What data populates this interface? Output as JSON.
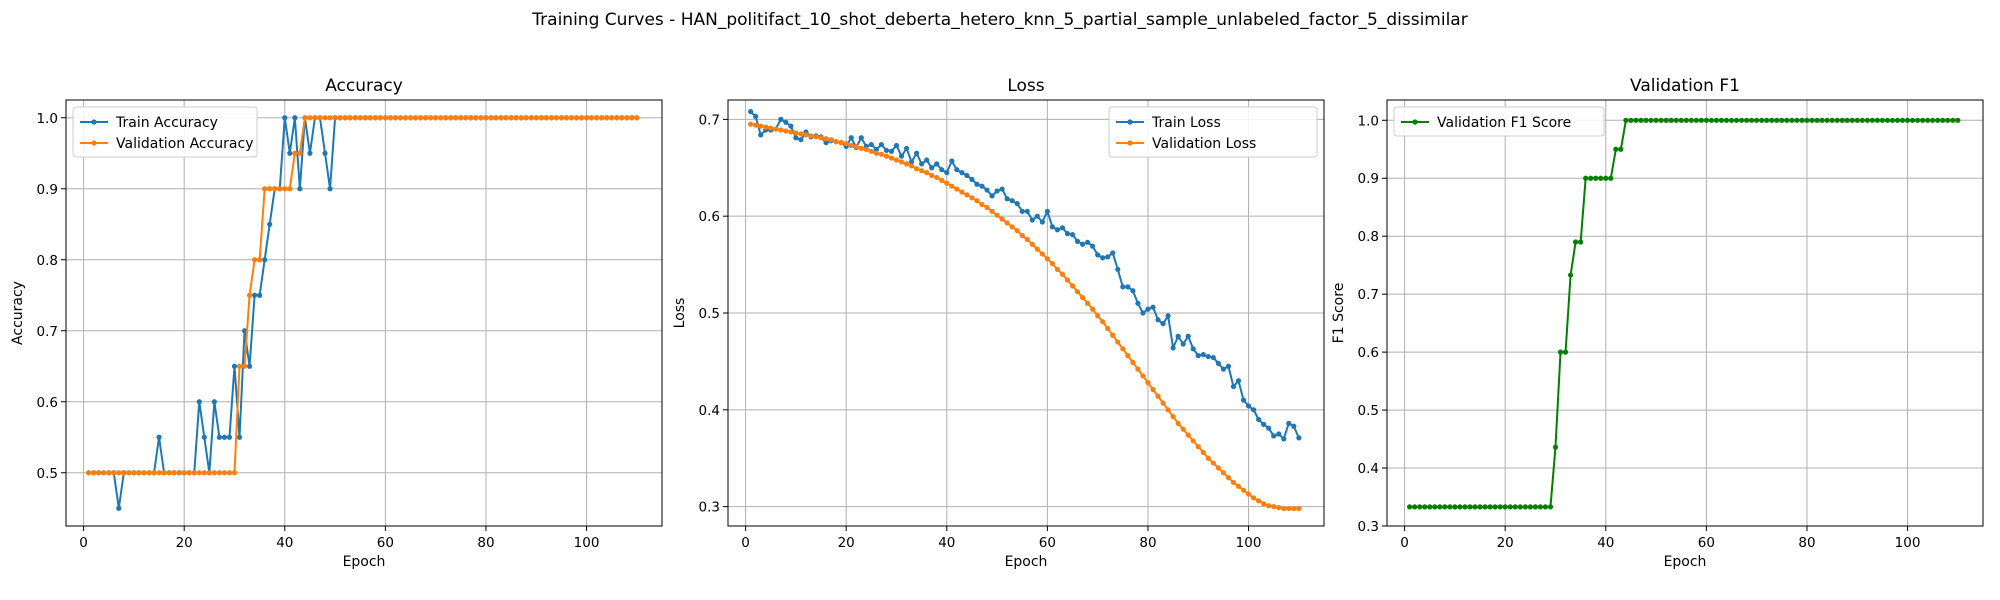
{
  "suptitle": "Training Curves - HAN_politifact_10_shot_deberta_hetero_knn_5_partial_sample_unlabeled_factor_5_dissimilar",
  "colors": {
    "blue": "#1f77b4",
    "orange": "#ff7f0e",
    "green": "#008000",
    "grid": "#b0b0b0"
  },
  "chart_data": [
    {
      "type": "line",
      "title": "Accuracy",
      "xlabel": "Epoch",
      "ylabel": "Accuracy",
      "xlim": [
        -3.5,
        115
      ],
      "ylim": [
        0.425,
        1.025
      ],
      "xticks": [
        0,
        20,
        40,
        60,
        80,
        100
      ],
      "yticks": [
        0.5,
        0.6,
        0.7,
        0.8,
        0.9,
        1.0
      ],
      "ytick_labels": [
        "0.5",
        "0.6",
        "0.7",
        "0.8",
        "0.9",
        "1.0"
      ],
      "grid": true,
      "legend": "upper-left",
      "series": [
        {
          "name": "Train Accuracy",
          "color": "#1f77b4",
          "x_start": 1,
          "values": [
            0.5,
            0.5,
            0.5,
            0.5,
            0.5,
            0.5,
            0.45,
            0.5,
            0.5,
            0.5,
            0.5,
            0.5,
            0.5,
            0.5,
            0.55,
            0.5,
            0.5,
            0.5,
            0.5,
            0.5,
            0.5,
            0.5,
            0.6,
            0.55,
            0.5,
            0.6,
            0.55,
            0.55,
            0.55,
            0.65,
            0.55,
            0.7,
            0.65,
            0.75,
            0.75,
            0.8,
            0.85,
            0.9,
            0.9,
            1.0,
            0.95,
            1.0,
            0.9,
            1.0,
            0.95,
            1.0,
            1.0,
            0.95,
            0.9,
            1.0,
            1.0,
            1.0,
            1.0,
            1.0,
            1.0,
            1.0,
            1.0,
            1.0,
            1.0,
            1.0,
            1.0,
            1.0,
            1.0,
            1.0,
            1.0,
            1.0,
            1.0,
            1.0,
            1.0,
            1.0,
            1.0,
            1.0,
            1.0,
            1.0,
            1.0,
            1.0,
            1.0,
            1.0,
            1.0,
            1.0,
            1.0,
            1.0,
            1.0,
            1.0,
            1.0,
            1.0,
            1.0,
            1.0,
            1.0,
            1.0,
            1.0,
            1.0,
            1.0,
            1.0,
            1.0,
            1.0,
            1.0,
            1.0,
            1.0,
            1.0,
            1.0,
            1.0,
            1.0,
            1.0,
            1.0,
            1.0,
            1.0,
            1.0,
            1.0,
            1.0
          ]
        },
        {
          "name": "Validation Accuracy",
          "color": "#ff7f0e",
          "x_start": 1,
          "values": [
            0.5,
            0.5,
            0.5,
            0.5,
            0.5,
            0.5,
            0.5,
            0.5,
            0.5,
            0.5,
            0.5,
            0.5,
            0.5,
            0.5,
            0.5,
            0.5,
            0.5,
            0.5,
            0.5,
            0.5,
            0.5,
            0.5,
            0.5,
            0.5,
            0.5,
            0.5,
            0.5,
            0.5,
            0.5,
            0.5,
            0.65,
            0.65,
            0.75,
            0.8,
            0.8,
            0.9,
            0.9,
            0.9,
            0.9,
            0.9,
            0.9,
            0.95,
            0.95,
            1.0,
            1.0,
            1.0,
            1.0,
            1.0,
            1.0,
            1.0,
            1.0,
            1.0,
            1.0,
            1.0,
            1.0,
            1.0,
            1.0,
            1.0,
            1.0,
            1.0,
            1.0,
            1.0,
            1.0,
            1.0,
            1.0,
            1.0,
            1.0,
            1.0,
            1.0,
            1.0,
            1.0,
            1.0,
            1.0,
            1.0,
            1.0,
            1.0,
            1.0,
            1.0,
            1.0,
            1.0,
            1.0,
            1.0,
            1.0,
            1.0,
            1.0,
            1.0,
            1.0,
            1.0,
            1.0,
            1.0,
            1.0,
            1.0,
            1.0,
            1.0,
            1.0,
            1.0,
            1.0,
            1.0,
            1.0,
            1.0,
            1.0,
            1.0,
            1.0,
            1.0,
            1.0,
            1.0,
            1.0,
            1.0,
            1.0,
            1.0
          ]
        }
      ]
    },
    {
      "type": "line",
      "title": "Loss",
      "xlabel": "Epoch",
      "ylabel": "Loss",
      "xlim": [
        -3.5,
        115
      ],
      "ylim": [
        0.28,
        0.72
      ],
      "xticks": [
        0,
        20,
        40,
        60,
        80,
        100
      ],
      "yticks": [
        0.3,
        0.4,
        0.5,
        0.6,
        0.7
      ],
      "ytick_labels": [
        "0.3",
        "0.4",
        "0.5",
        "0.6",
        "0.7"
      ],
      "grid": true,
      "legend": "upper-right",
      "series": [
        {
          "name": "Train Loss",
          "color": "#1f77b4",
          "x_start": 1,
          "values": [
            0.708,
            0.703,
            0.684,
            0.689,
            0.689,
            0.69,
            0.7,
            0.697,
            0.693,
            0.681,
            0.679,
            0.687,
            0.682,
            0.683,
            0.682,
            0.676,
            0.678,
            0.677,
            0.676,
            0.672,
            0.681,
            0.671,
            0.681,
            0.672,
            0.674,
            0.669,
            0.674,
            0.668,
            0.667,
            0.673,
            0.662,
            0.67,
            0.656,
            0.665,
            0.654,
            0.658,
            0.65,
            0.654,
            0.648,
            0.645,
            0.657,
            0.648,
            0.645,
            0.642,
            0.638,
            0.633,
            0.631,
            0.627,
            0.621,
            0.626,
            0.628,
            0.618,
            0.616,
            0.613,
            0.605,
            0.605,
            0.596,
            0.6,
            0.594,
            0.605,
            0.589,
            0.586,
            0.588,
            0.582,
            0.581,
            0.574,
            0.571,
            0.573,
            0.569,
            0.56,
            0.557,
            0.558,
            0.562,
            0.545,
            0.527,
            0.527,
            0.523,
            0.51,
            0.5,
            0.504,
            0.506,
            0.493,
            0.489,
            0.497,
            0.464,
            0.476,
            0.468,
            0.476,
            0.463,
            0.456,
            0.457,
            0.455,
            0.454,
            0.448,
            0.442,
            0.445,
            0.424,
            0.43,
            0.41,
            0.404,
            0.4,
            0.39,
            0.385,
            0.381,
            0.373,
            0.375,
            0.37,
            0.386,
            0.383,
            0.371
          ]
        },
        {
          "name": "Validation Loss",
          "color": "#ff7f0e",
          "x_start": 1,
          "values": [
            0.695,
            0.694,
            0.693,
            0.692,
            0.691,
            0.69,
            0.689,
            0.688,
            0.687,
            0.686,
            0.685,
            0.684,
            0.683,
            0.682,
            0.681,
            0.68,
            0.679,
            0.677,
            0.676,
            0.675,
            0.673,
            0.672,
            0.67,
            0.669,
            0.667,
            0.665,
            0.664,
            0.662,
            0.66,
            0.658,
            0.656,
            0.654,
            0.652,
            0.649,
            0.647,
            0.645,
            0.642,
            0.64,
            0.637,
            0.634,
            0.631,
            0.628,
            0.625,
            0.622,
            0.619,
            0.616,
            0.612,
            0.609,
            0.605,
            0.601,
            0.597,
            0.593,
            0.589,
            0.585,
            0.58,
            0.576,
            0.571,
            0.566,
            0.561,
            0.556,
            0.551,
            0.545,
            0.54,
            0.534,
            0.528,
            0.522,
            0.516,
            0.51,
            0.504,
            0.497,
            0.491,
            0.484,
            0.477,
            0.47,
            0.463,
            0.456,
            0.449,
            0.442,
            0.435,
            0.428,
            0.421,
            0.414,
            0.407,
            0.4,
            0.393,
            0.386,
            0.38,
            0.374,
            0.368,
            0.362,
            0.356,
            0.35,
            0.345,
            0.34,
            0.335,
            0.33,
            0.325,
            0.321,
            0.317,
            0.313,
            0.309,
            0.306,
            0.303,
            0.301,
            0.3,
            0.299,
            0.298,
            0.298,
            0.298,
            0.298
          ]
        }
      ]
    },
    {
      "type": "line",
      "title": "Validation F1",
      "xlabel": "Epoch",
      "ylabel": "F1 Score",
      "xlim": [
        -3.5,
        115
      ],
      "ylim": [
        0.3,
        1.035
      ],
      "xticks": [
        0,
        20,
        40,
        60,
        80,
        100
      ],
      "yticks": [
        0.3,
        0.4,
        0.5,
        0.6,
        0.7,
        0.8,
        0.9,
        1.0
      ],
      "ytick_labels": [
        "0.3",
        "0.4",
        "0.5",
        "0.6",
        "0.7",
        "0.8",
        "0.9",
        "1.0"
      ],
      "grid": true,
      "legend": "upper-left",
      "series": [
        {
          "name": "Validation F1 Score",
          "color": "#008000",
          "x_start": 1,
          "values": [
            0.333,
            0.333,
            0.333,
            0.333,
            0.333,
            0.333,
            0.333,
            0.333,
            0.333,
            0.333,
            0.333,
            0.333,
            0.333,
            0.333,
            0.333,
            0.333,
            0.333,
            0.333,
            0.333,
            0.333,
            0.333,
            0.333,
            0.333,
            0.333,
            0.333,
            0.333,
            0.333,
            0.333,
            0.333,
            0.436,
            0.6,
            0.6,
            0.733,
            0.79,
            0.79,
            0.9,
            0.9,
            0.9,
            0.9,
            0.9,
            0.9,
            0.95,
            0.95,
            1.0,
            1.0,
            1.0,
            1.0,
            1.0,
            1.0,
            1.0,
            1.0,
            1.0,
            1.0,
            1.0,
            1.0,
            1.0,
            1.0,
            1.0,
            1.0,
            1.0,
            1.0,
            1.0,
            1.0,
            1.0,
            1.0,
            1.0,
            1.0,
            1.0,
            1.0,
            1.0,
            1.0,
            1.0,
            1.0,
            1.0,
            1.0,
            1.0,
            1.0,
            1.0,
            1.0,
            1.0,
            1.0,
            1.0,
            1.0,
            1.0,
            1.0,
            1.0,
            1.0,
            1.0,
            1.0,
            1.0,
            1.0,
            1.0,
            1.0,
            1.0,
            1.0,
            1.0,
            1.0,
            1.0,
            1.0,
            1.0,
            1.0,
            1.0,
            1.0,
            1.0,
            1.0,
            1.0,
            1.0,
            1.0,
            1.0,
            1.0
          ]
        }
      ]
    }
  ]
}
